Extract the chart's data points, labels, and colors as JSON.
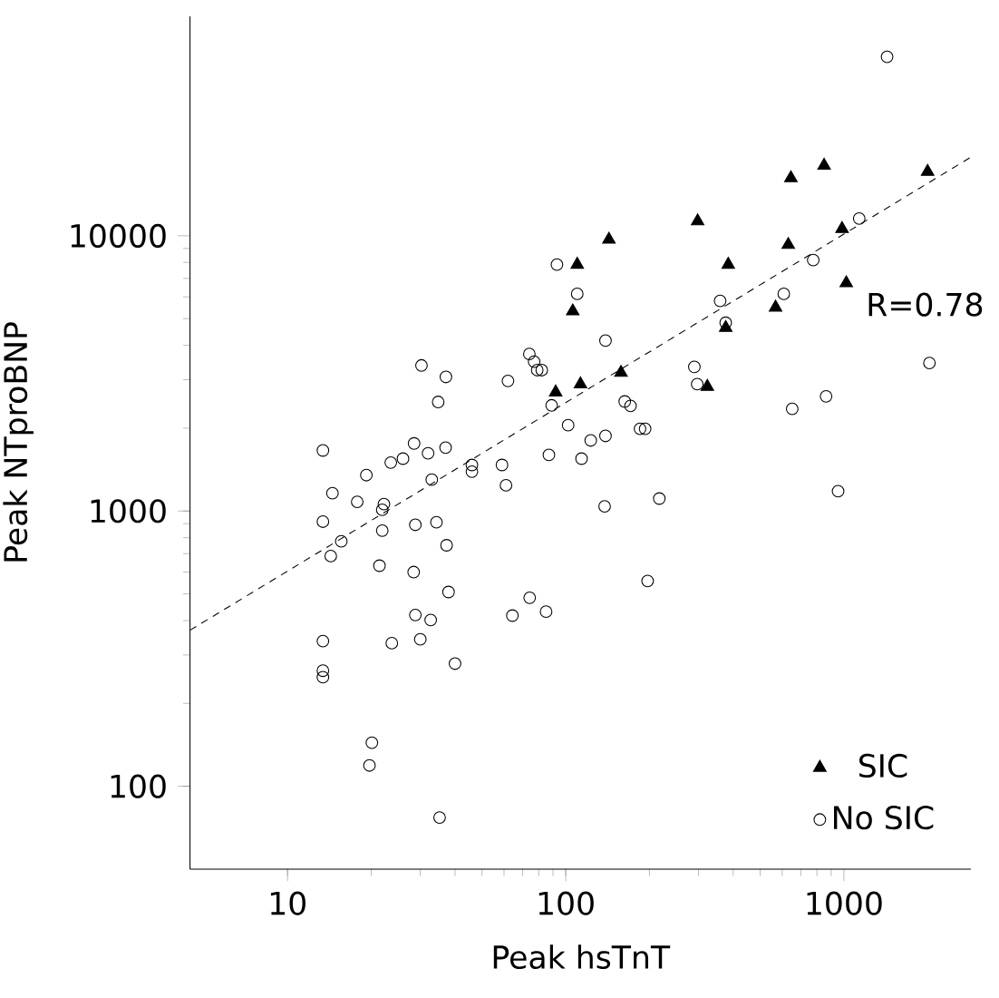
{
  "chart_data": {
    "type": "scatter",
    "xlabel": "Peak hsTnT",
    "ylabel": "Peak NTproBNP",
    "log": "xy",
    "xlim": [
      4.46,
      2860
    ],
    "ylim": [
      50,
      62700
    ],
    "xticks": [
      10,
      100,
      1000
    ],
    "yticks": [
      100,
      1000,
      10000
    ],
    "legend": "bottom right",
    "annotations": [
      "R=0.78"
    ],
    "series": [
      {
        "name": "SIC",
        "color": "#000000",
        "marker": "triangle",
        "x": [
          849,
          645,
          2000,
          298,
          143,
          985,
          631,
          110,
          384,
          1020,
          106,
          568,
          376,
          158,
          92,
          113,
          323
        ],
        "values": [
          18000,
          16200,
          17100,
          11300,
          9690,
          10600,
          9280,
          7860,
          7860,
          6730,
          5320,
          5490,
          4630,
          3180,
          2700,
          2890,
          2830
        ]
      },
      {
        "name": "No SIC",
        "color": "#000000",
        "marker": "circle",
        "x": [
          1430,
          1135,
          776,
          359,
          376,
          608,
          93,
          110,
          139,
          290,
          297,
          2030,
          863,
          652,
          953,
          197,
          217,
          138,
          163,
          171,
          185,
          193,
          139,
          123,
          114,
          102,
          87,
          89,
          74,
          77,
          79,
          82,
          62,
          59,
          61,
          46,
          46,
          33,
          37,
          32,
          28.5,
          26,
          23.5,
          19.2,
          17.8,
          14.5,
          13.4,
          13.4,
          15.6,
          14.3,
          22.2,
          21.9,
          21.9,
          21.4,
          28.8,
          34.3,
          37.3,
          28.4,
          37.9,
          28.8,
          32.7,
          30.0,
          23.7,
          40,
          64.3,
          74.2,
          85,
          13.4,
          13.4,
          13.4,
          20.1,
          19.7,
          35.2,
          30.3,
          37.1,
          34.8
        ],
        "values": [
          44700,
          11550,
          8160,
          5800,
          4830,
          6150,
          7860,
          6150,
          4160,
          3340,
          2890,
          3450,
          2610,
          2350,
          1180,
          557,
          1110,
          1040,
          2500,
          2410,
          1990,
          1990,
          1875,
          1805,
          1550,
          2050,
          1600,
          2420,
          3720,
          3490,
          3250,
          3250,
          2970,
          1470,
          1240,
          1470,
          1390,
          1300,
          1700,
          1620,
          1760,
          1550,
          1500,
          1350,
          1080,
          1160,
          1660,
          915,
          776,
          686,
          1060,
          1010,
          849,
          633,
          891,
          910,
          751,
          600,
          508,
          419,
          402,
          342,
          331,
          279,
          417,
          484,
          431,
          337,
          263,
          249,
          144,
          119,
          77,
          3380,
          3070,
          2490
        ]
      },
      {
        "type": "line",
        "color": "#000000",
        "line_style": "dashed",
        "x": [
          4.46,
          2860
        ],
        "values": [
          369,
          19300
        ]
      }
    ]
  }
}
